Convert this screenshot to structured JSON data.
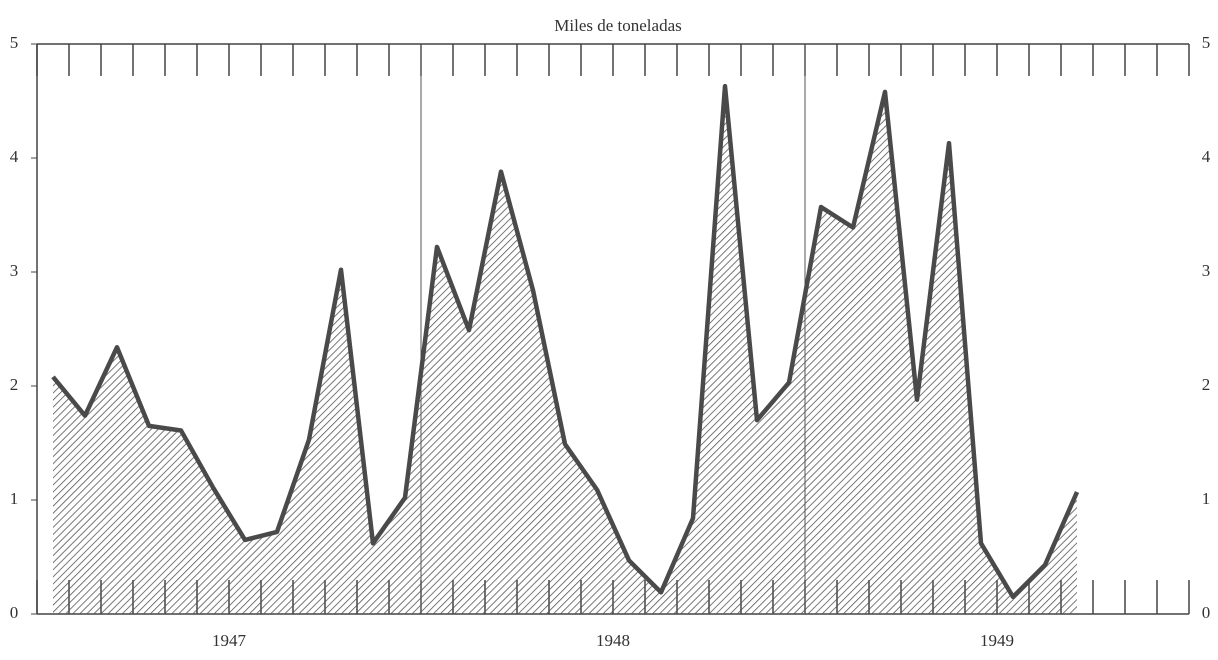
{
  "chart_data": {
    "type": "area",
    "title": "Miles de toneladas",
    "categories": [
      null,
      null,
      null,
      null,
      null,
      null,
      null,
      null,
      null,
      null,
      null,
      null,
      null,
      null,
      null,
      null,
      null,
      null,
      null,
      null,
      null,
      null,
      null,
      null,
      null,
      null,
      null,
      null,
      null,
      null,
      null,
      null,
      null,
      null,
      null,
      null
    ],
    "year_labels": [
      "1947",
      "1948",
      "1949"
    ],
    "values": [
      2.08,
      1.74,
      2.34,
      1.65,
      1.61,
      1.11,
      0.65,
      0.72,
      1.53,
      3.02,
      0.62,
      1.02,
      3.22,
      2.49,
      3.88,
      2.84,
      1.49,
      1.09,
      0.47,
      0.19,
      0.84,
      4.63,
      1.7,
      2.03,
      3.57,
      3.39,
      4.58,
      1.88,
      4.13,
      0.62,
      0.15,
      0.43,
      1.07,
      null,
      null,
      null
    ],
    "color": "#4a4a4a",
    "ylim": [
      0,
      5
    ],
    "yticks": [
      0,
      1,
      2,
      3,
      4,
      5
    ],
    "y2lim": [
      0,
      5
    ],
    "y2ticks": [
      0,
      1,
      2,
      3,
      4,
      5
    ]
  }
}
